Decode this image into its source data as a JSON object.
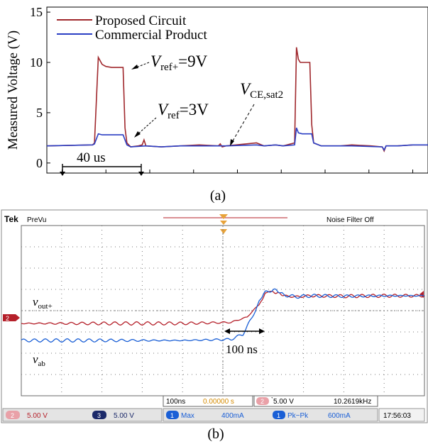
{
  "colors": {
    "proposed": "#a0282d",
    "commercial": "#2b3fc4",
    "scope_bg": "#ffffff",
    "scope_frame": "#3a3a3a",
    "scope_marker": "#e8a33a",
    "scope_ch2": "#b5202a",
    "scope_ch3": "#1c2a6a",
    "scope_ch1": "#1a5fd6",
    "scope_bar": "#d9d9d9"
  },
  "chart_data": [
    {
      "type": "line",
      "ylabel": "Measured Voltage (V)",
      "xlabel": "",
      "ylim": [
        -1,
        15.5
      ],
      "yticks": [
        0,
        5,
        10,
        15
      ],
      "xlim": [
        0,
        100
      ],
      "caption": "(a)",
      "legend": {
        "placement": "top-left",
        "entries": [
          "Proposed Circuit",
          "Commercial Product"
        ]
      },
      "series": [
        {
          "name": "Proposed Circuit",
          "x": [
            0,
            12,
            12.5,
            13.5,
            14.5,
            15.5,
            17,
            19,
            20,
            20.5,
            21,
            22,
            24,
            25,
            25.5,
            26,
            30,
            35,
            40,
            45,
            45.5,
            46,
            47,
            55,
            57,
            60,
            62,
            65,
            65.5,
            66,
            66.5,
            67,
            68,
            69,
            69.5,
            70,
            72,
            77,
            80,
            85,
            88,
            88.5,
            89,
            92,
            96,
            98,
            100
          ],
          "values": [
            1.7,
            1.8,
            2.0,
            10.5,
            9.8,
            9.6,
            9.5,
            9.5,
            9.5,
            3.5,
            2.0,
            1.6,
            1.7,
            1.8,
            2.3,
            1.7,
            1.6,
            1.7,
            1.8,
            1.7,
            1.9,
            1.6,
            1.7,
            2.0,
            1.7,
            1.8,
            1.7,
            2.0,
            11.5,
            10.3,
            10.0,
            10.0,
            10.0,
            10.0,
            3.8,
            2.0,
            1.7,
            1.7,
            1.8,
            1.7,
            1.6,
            1.2,
            1.7,
            1.7,
            1.8,
            1.8,
            1.8
          ]
        },
        {
          "name": "Commercial Product",
          "x": [
            0,
            12,
            12.5,
            13.5,
            14.5,
            17,
            19,
            20,
            20.5,
            21,
            22,
            26,
            30,
            35,
            40,
            45,
            47,
            55,
            57,
            60,
            62,
            65,
            65.5,
            66,
            67,
            68,
            69,
            69.5,
            70,
            72,
            80,
            88,
            88.5,
            89,
            92,
            96,
            100
          ],
          "values": [
            1.7,
            1.8,
            1.9,
            2.9,
            2.8,
            2.8,
            2.8,
            2.8,
            2.3,
            1.8,
            1.6,
            1.7,
            1.6,
            1.7,
            1.7,
            1.7,
            1.7,
            1.8,
            1.7,
            1.8,
            1.7,
            1.8,
            3.5,
            3.0,
            2.9,
            2.9,
            2.9,
            2.9,
            2.0,
            1.7,
            1.7,
            1.6,
            1.3,
            1.7,
            1.7,
            1.8,
            1.8
          ]
        }
      ],
      "annotations": {
        "vref_plus": {
          "main": "V",
          "sub": "ref+",
          "rest": "=9V"
        },
        "vref": {
          "main": "V",
          "sub": "ref",
          "rest": "=3V"
        },
        "vce": {
          "main": "V",
          "sub": "CE,sat2"
        },
        "time_span": "40 us"
      }
    },
    {
      "type": "line",
      "caption": "(b)",
      "xlim": [
        0,
        10
      ],
      "ylim": [
        0,
        8
      ],
      "series": [
        {
          "name": "v_out+",
          "x": [
            0,
            2,
            4,
            5.2,
            5.6,
            5.9,
            6.05,
            6.25,
            6.5,
            6.8,
            7.2,
            8,
            9,
            10
          ],
          "values": [
            3.4,
            3.4,
            3.4,
            3.45,
            3.7,
            4.3,
            4.85,
            4.9,
            4.7,
            4.65,
            4.7,
            4.68,
            4.7,
            4.7
          ]
        },
        {
          "name": "v_ab",
          "x": [
            0,
            2,
            4,
            5.2,
            5.5,
            5.7,
            5.9,
            6.05,
            6.25,
            6.5,
            6.8,
            7.2,
            8,
            9,
            10
          ],
          "values": [
            2.6,
            2.6,
            2.6,
            2.65,
            2.9,
            3.6,
            4.4,
            4.85,
            5.0,
            4.75,
            4.65,
            4.7,
            4.68,
            4.7,
            4.7
          ]
        }
      ],
      "labels": {
        "vout": {
          "main": "v",
          "sub": "out+"
        },
        "vab": {
          "main": "v",
          "sub": "ab"
        },
        "time_span": "100 ns"
      },
      "scope": {
        "brand": "Tek",
        "mode": "PreVu",
        "filter": "Noise Filter Off",
        "timebase": "100ns",
        "trigger_pos": "0.00000 s",
        "trig_ch": "2",
        "trig_level": "̀5.00 V",
        "freq": "10.2619kHz",
        "ch2_num": "2",
        "ch2_scale": "5.00 V",
        "ch3_num": "3",
        "ch3_scale": "5.00 V",
        "m1_num": "1",
        "m1_name": "Max",
        "m1_val": "400mA",
        "m2_num": "1",
        "m2_name": "Pk−Pk",
        "m2_val": "600mA",
        "clock": "17:56:03",
        "ch2_marker": "2"
      }
    }
  ]
}
